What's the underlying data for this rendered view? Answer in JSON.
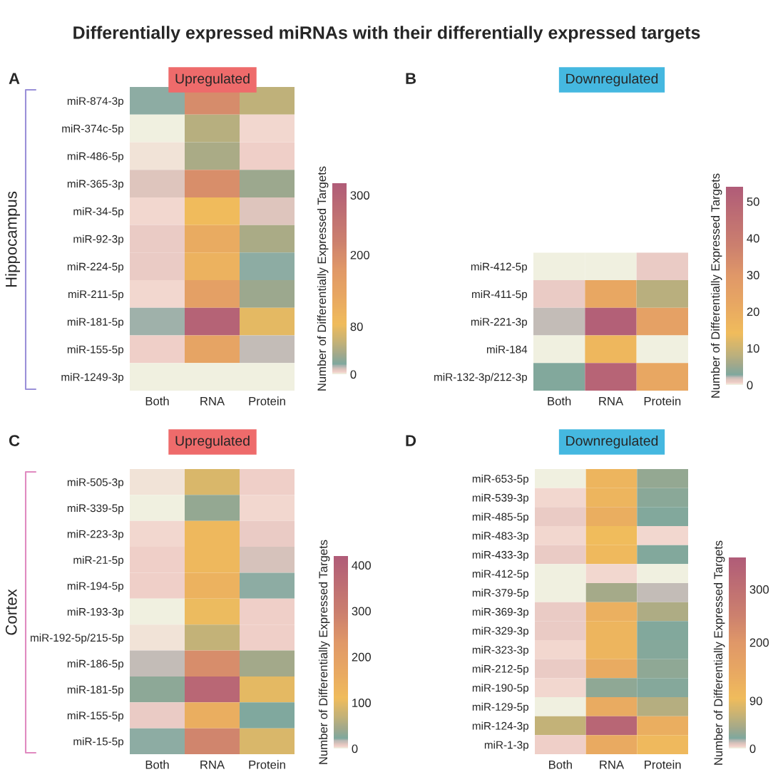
{
  "chart_data": [
    {
      "type": "heatmap",
      "title": "Upregulated",
      "ylabel": "Hippocampus",
      "annotations": [
        "A",
        "Differentially expressed miRNAs with their differentially expressed targets"
      ],
      "clabel": "Number of Differentially Expressed Targets",
      "categories": [
        "Both",
        "RNA",
        "Protein"
      ],
      "y_categories": [
        "miR-874-3p",
        "miR-374c-5p",
        "miR-486-5p",
        "miR-365-3p",
        "miR-34-5p",
        "miR-92-3p",
        "miR-224-5p",
        "miR-211-5p",
        "miR-181-5p",
        "miR-155-5p",
        "miR-1249-3p"
      ],
      "cells": [
        [
          15,
          200,
          50
        ],
        [
          0,
          45,
          3
        ],
        [
          2,
          38,
          4
        ],
        [
          8,
          195,
          30
        ],
        [
          3,
          85,
          8
        ],
        [
          5,
          120,
          38
        ],
        [
          5,
          105,
          15
        ],
        [
          3,
          150,
          30
        ],
        [
          14,
          300,
          75
        ],
        [
          4,
          140,
          12
        ],
        [
          0,
          1,
          0
        ]
      ],
      "clim": [
        0,
        320
      ],
      "cticks": [
        0,
        80,
        200,
        300
      ]
    },
    {
      "type": "heatmap",
      "title": "Downregulated",
      "annotations": [
        "B"
      ],
      "clabel": "Number of Differentially Expressed Targets",
      "categories": [
        "Both",
        "RNA",
        "Protein"
      ],
      "y_categories": [
        "miR-412-5p",
        "miR-411-5p",
        "miR-221-3p",
        "miR-184",
        "miR-132-3p/212-3p"
      ],
      "cells": [
        [
          0,
          0,
          1
        ],
        [
          1,
          22,
          8
        ],
        [
          2,
          52,
          25
        ],
        [
          0,
          16,
          0
        ],
        [
          3,
          50,
          22
        ]
      ],
      "clim": [
        0,
        54
      ],
      "cticks": [
        0,
        10,
        20,
        30,
        40,
        50
      ]
    },
    {
      "type": "heatmap",
      "title": "Upregulated",
      "ylabel": "Cortex",
      "annotations": [
        "C"
      ],
      "clabel": "Number of Differentially Expressed Targets",
      "categories": [
        "Both",
        "RNA",
        "Protein"
      ],
      "y_categories": [
        "miR-505-3p",
        "miR-339-5p",
        "miR-223-3p",
        "miR-21-5p",
        "miR-194-5p",
        "miR-193-3p",
        "miR-192-5p/215-5p",
        "miR-186-5p",
        "miR-181-5p",
        "miR-155-5p",
        "miR-15-5p"
      ],
      "cells": [
        [
          2,
          90,
          6
        ],
        [
          0,
          35,
          4
        ],
        [
          4,
          120,
          7
        ],
        [
          5,
          120,
          12
        ],
        [
          5,
          140,
          20
        ],
        [
          0,
          105,
          5
        ],
        [
          2,
          70,
          5
        ],
        [
          15,
          260,
          45
        ],
        [
          30,
          380,
          100
        ],
        [
          7,
          150,
          22
        ],
        [
          20,
          280,
          90
        ]
      ],
      "clim": [
        0,
        420
      ],
      "cticks": [
        0,
        100,
        200,
        300,
        400
      ]
    },
    {
      "type": "heatmap",
      "title": "Downregulated",
      "annotations": [
        "D"
      ],
      "clabel": "Number of Differentially Expressed Targets",
      "categories": [
        "Both",
        "RNA",
        "Protein"
      ],
      "y_categories": [
        "miR-653-5p",
        "miR-539-3p",
        "miR-485-5p",
        "miR-483-3p",
        "miR-433-3p",
        "miR-412-5p",
        "miR-379-5p",
        "miR-369-3p",
        "miR-329-3p",
        "miR-323-3p",
        "miR-212-5p",
        "miR-190-5p",
        "miR-129-5p",
        "miR-124-3p",
        "miR-1-3p"
      ],
      "cells": [
        [
          0,
          110,
          30
        ],
        [
          3,
          110,
          25
        ],
        [
          7,
          130,
          20
        ],
        [
          3,
          95,
          3
        ],
        [
          6,
          100,
          20
        ],
        [
          0,
          3,
          0
        ],
        [
          0,
          40,
          14
        ],
        [
          6,
          125,
          45
        ],
        [
          6,
          110,
          20
        ],
        [
          3,
          110,
          22
        ],
        [
          6,
          135,
          28
        ],
        [
          3,
          28,
          22
        ],
        [
          0,
          135,
          50
        ],
        [
          60,
          330,
          130
        ],
        [
          5,
          140,
          100
        ]
      ],
      "clim": [
        0,
        360
      ],
      "cticks": [
        0,
        90,
        200,
        300
      ]
    }
  ]
}
